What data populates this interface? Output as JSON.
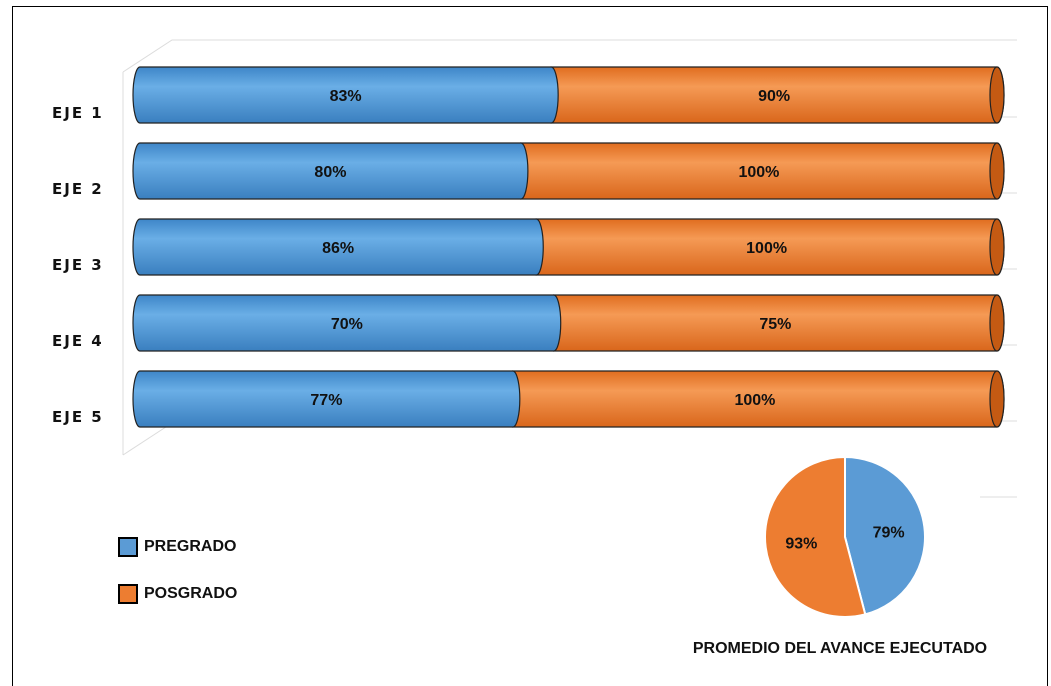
{
  "chart_data": [
    {
      "type": "bar",
      "orientation": "horizontal",
      "stacked": true,
      "categories": [
        "EJE 1",
        "EJE 2",
        "EJE 3",
        "EJE 4",
        "EJE 5"
      ],
      "series": [
        {
          "name": "PREGRADO",
          "values": [
            83,
            80,
            86,
            70,
            77
          ],
          "labels": [
            "83%",
            "80%",
            "86%",
            "70%",
            "77%"
          ],
          "color": "#5b9bd5"
        },
        {
          "name": "POSGRADO",
          "values": [
            90,
            100,
            100,
            75,
            100
          ],
          "labels": [
            "90%",
            "100%",
            "100%",
            "75%",
            "100%"
          ],
          "color": "#ed7d31"
        }
      ],
      "legend": "bottom-left",
      "grid": true
    },
    {
      "type": "pie",
      "title": "PROMEDIO DEL AVANCE EJECUTADO",
      "slices": [
        {
          "name": "PREGRADO",
          "value": 79,
          "label": "79%",
          "color": "#5b9bd5"
        },
        {
          "name": "POSGRADO",
          "value": 93,
          "label": "93%",
          "color": "#ed7d31"
        }
      ]
    }
  ],
  "legend_items": [
    {
      "label": "PREGRADO",
      "color": "#5b9bd5"
    },
    {
      "label": "POSGRADO",
      "color": "#ed7d31"
    }
  ]
}
